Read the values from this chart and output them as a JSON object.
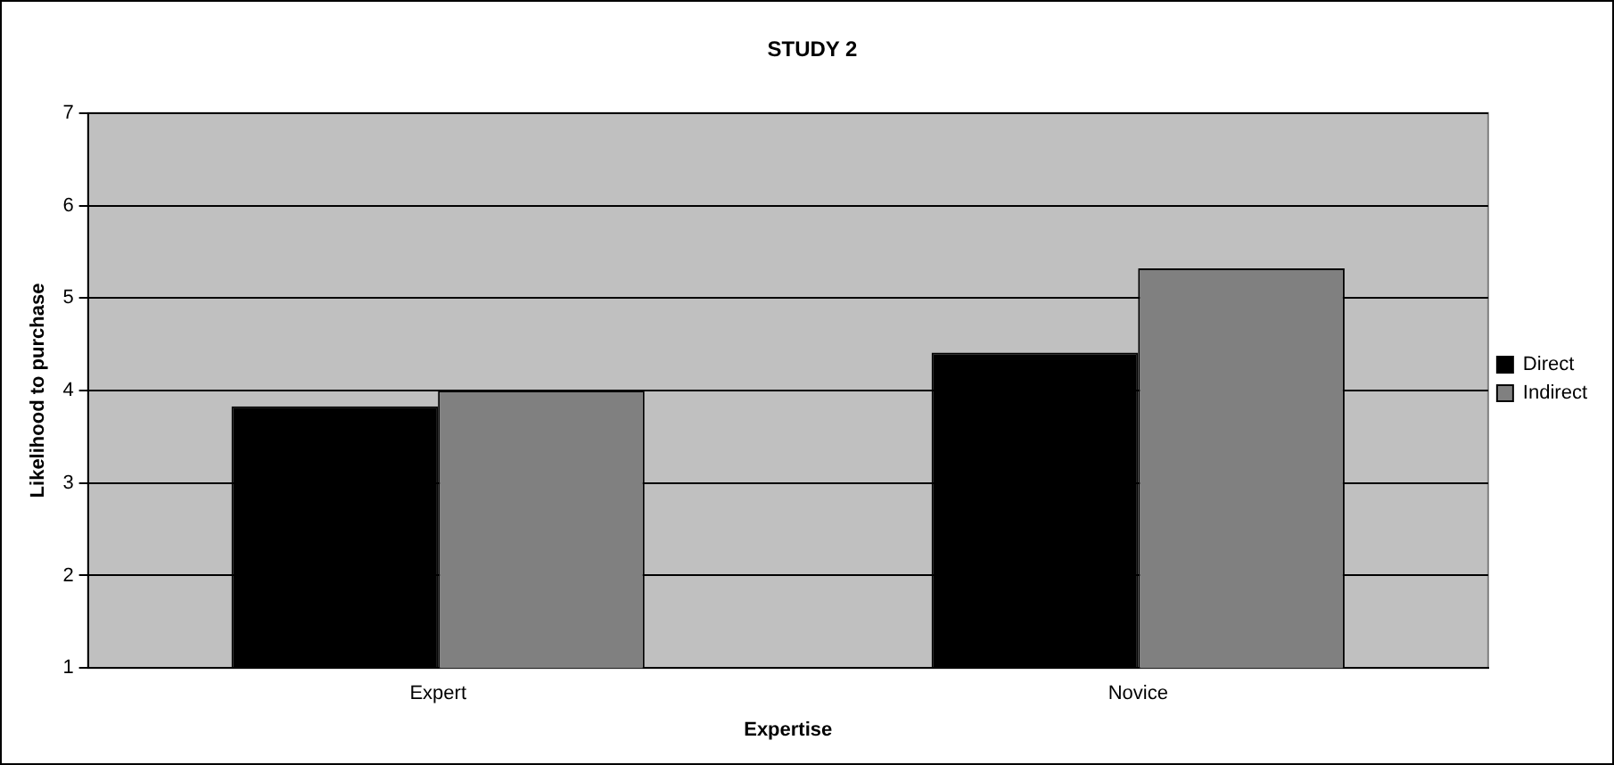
{
  "chart_data": {
    "type": "bar",
    "title": "STUDY 2",
    "xlabel": "Expertise",
    "ylabel": "Likelihood to purchase",
    "categories": [
      "Expert",
      "Novice"
    ],
    "series": [
      {
        "name": "Direct",
        "color": "#000000",
        "values": [
          3.83,
          4.41
        ]
      },
      {
        "name": "Indirect",
        "color": "#808080",
        "values": [
          4.0,
          5.32
        ]
      }
    ],
    "ylim": [
      1,
      7
    ],
    "yticks": [
      1,
      2,
      3,
      4,
      5,
      6,
      7
    ],
    "grid": "y",
    "legend": "right"
  }
}
